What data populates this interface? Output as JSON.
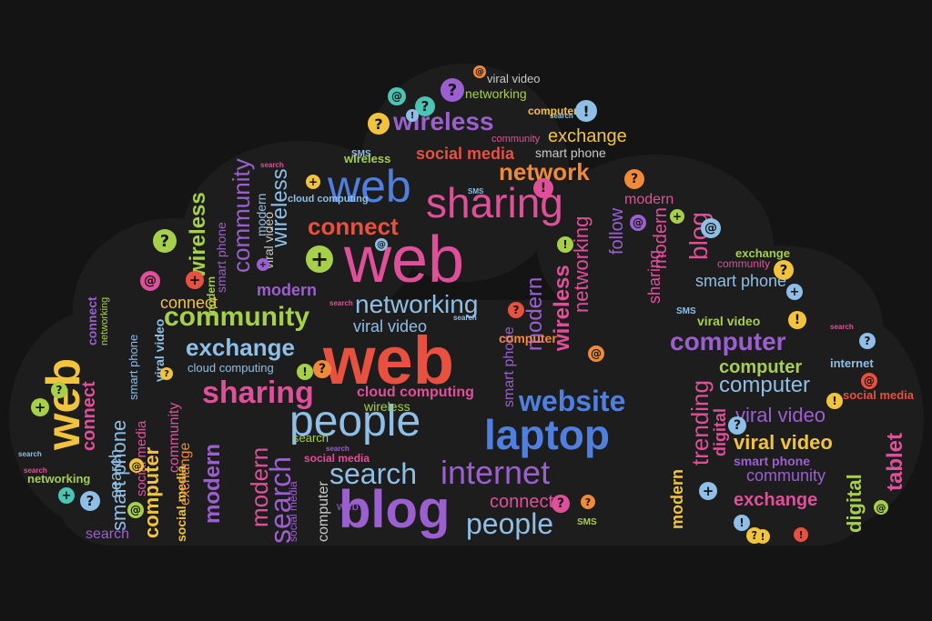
{
  "palette": {
    "background": "#141414",
    "cloud": "#1b1b1b",
    "yellow": "#f2c43d",
    "red": "#e8503f",
    "pink": "#e0509a",
    "purple": "#9b5fcf",
    "blue": "#4f7fe0",
    "lightblue": "#8fbfe6",
    "green": "#a6cf4a",
    "teal": "#4cc4b4",
    "orange": "#ef8a3a",
    "gray": "#c9c9c9"
  },
  "words": [
    {
      "text": "web",
      "color": "red",
      "weight": "bold"
    },
    {
      "text": "web",
      "color": "pink",
      "weight": "normal"
    },
    {
      "text": "web",
      "color": "blue",
      "weight": "normal"
    },
    {
      "text": "web",
      "color": "yellow",
      "weight": "bold"
    },
    {
      "text": "blog",
      "color": "purple",
      "weight": "bold"
    },
    {
      "text": "laptop",
      "color": "blue",
      "weight": "bold"
    },
    {
      "text": "people",
      "color": "lightblue",
      "weight": "normal"
    },
    {
      "text": "people",
      "color": "lightblue",
      "weight": "normal"
    },
    {
      "text": "sharing",
      "color": "pink",
      "weight": "normal"
    },
    {
      "text": "sharing",
      "color": "pink",
      "weight": "bold"
    },
    {
      "text": "internet",
      "color": "purple",
      "weight": "normal"
    },
    {
      "text": "website",
      "color": "blue",
      "weight": "bold"
    },
    {
      "text": "community",
      "color": "green",
      "weight": "bold"
    },
    {
      "text": "community",
      "color": "purple",
      "weight": "normal"
    },
    {
      "text": "computer",
      "color": "purple",
      "weight": "bold"
    },
    {
      "text": "computer",
      "color": "green",
      "weight": "bold"
    },
    {
      "text": "computer",
      "color": "lightblue",
      "weight": "normal"
    },
    {
      "text": "exchange",
      "color": "lightblue",
      "weight": "bold"
    },
    {
      "text": "exchange",
      "color": "pink",
      "weight": "bold"
    },
    {
      "text": "exchange",
      "color": "yellow",
      "weight": "normal"
    },
    {
      "text": "networking",
      "color": "lightblue",
      "weight": "normal"
    },
    {
      "text": "networking",
      "color": "green",
      "weight": "normal"
    },
    {
      "text": "network",
      "color": "orange",
      "weight": "bold"
    },
    {
      "text": "wireless",
      "color": "purple",
      "weight": "bold"
    },
    {
      "text": "wireless",
      "color": "green",
      "weight": "bold"
    },
    {
      "text": "connect",
      "color": "red",
      "weight": "bold"
    },
    {
      "text": "connect",
      "color": "pink",
      "weight": "normal"
    },
    {
      "text": "search",
      "color": "lightblue",
      "weight": "normal"
    },
    {
      "text": "viral video",
      "color": "yellow",
      "weight": "bold"
    },
    {
      "text": "viral video",
      "color": "purple",
      "weight": "normal"
    },
    {
      "text": "viral video",
      "color": "lightblue",
      "weight": "normal"
    },
    {
      "text": "viral video",
      "color": "gray",
      "weight": "normal"
    },
    {
      "text": "viral video",
      "color": "green",
      "weight": "bold"
    },
    {
      "text": "social media",
      "color": "red",
      "weight": "bold"
    },
    {
      "text": "social media",
      "color": "red",
      "weight": "bold"
    },
    {
      "text": "smart phone",
      "color": "gray",
      "weight": "normal"
    },
    {
      "text": "smart phone",
      "color": "purple",
      "weight": "bold"
    },
    {
      "text": "smart phone",
      "color": "lightblue",
      "weight": "normal"
    },
    {
      "text": "modern",
      "color": "purple",
      "weight": "bold"
    },
    {
      "text": "modern",
      "color": "pink",
      "weight": "normal"
    },
    {
      "text": "cloud computing",
      "color": "pink",
      "weight": "bold"
    },
    {
      "text": "cloud computing",
      "color": "lightblue",
      "weight": "normal"
    },
    {
      "text": "trending",
      "color": "pink",
      "weight": "normal"
    },
    {
      "text": "digital",
      "color": "green",
      "weight": "bold"
    },
    {
      "text": "tablet",
      "color": "pink",
      "weight": "bold"
    },
    {
      "text": "follow",
      "color": "purple",
      "weight": "normal"
    },
    {
      "text": "internet",
      "color": "lightblue",
      "weight": "bold"
    },
    {
      "text": "wireless",
      "color": "green",
      "weight": "normal"
    },
    {
      "text": "community",
      "color": "pink",
      "weight": "normal"
    },
    {
      "text": "smart phone",
      "color": "lightblue",
      "weight": "normal"
    },
    {
      "text": "social media",
      "color": "pink",
      "weight": "normal"
    },
    {
      "text": "modern",
      "color": "purple",
      "weight": "bold"
    },
    {
      "text": "modern",
      "color": "pink",
      "weight": "normal"
    },
    {
      "text": "wireless",
      "color": "pink",
      "weight": "bold"
    },
    {
      "text": "wireless",
      "color": "lightblue",
      "weight": "normal"
    },
    {
      "text": "search",
      "color": "purple",
      "weight": "normal"
    },
    {
      "text": "connect",
      "color": "pink",
      "weight": "bold"
    },
    {
      "text": "computer",
      "color": "yellow",
      "weight": "bold"
    },
    {
      "text": "networking",
      "color": "pink",
      "weight": "normal"
    },
    {
      "text": "modern",
      "color": "purple",
      "weight": "normal"
    },
    {
      "text": "modern",
      "color": "yellow",
      "weight": "bold"
    },
    {
      "text": "digital",
      "color": "pink",
      "weight": "bold"
    },
    {
      "text": "search",
      "color": "purple",
      "weight": "normal"
    },
    {
      "text": "modern",
      "color": "pink",
      "weight": "normal"
    },
    {
      "text": "sharing",
      "color": "pink",
      "weight": "normal"
    },
    {
      "text": "social media",
      "color": "yellow",
      "weight": "bold"
    },
    {
      "text": "blog",
      "color": "pink",
      "weight": "normal"
    },
    {
      "text": "web",
      "color": "purple",
      "weight": "normal"
    },
    {
      "text": "smart phone",
      "color": "purple",
      "weight": "normal"
    },
    {
      "text": "community",
      "color": "purple",
      "weight": "normal"
    },
    {
      "text": "exchange",
      "color": "green",
      "weight": "bold"
    },
    {
      "text": "search",
      "color": "green",
      "weight": "normal"
    },
    {
      "text": "viral video",
      "color": "gray",
      "weight": "normal"
    },
    {
      "text": "computer",
      "color": "gray",
      "weight": "normal"
    },
    {
      "text": "social media",
      "color": "purple",
      "weight": "normal"
    },
    {
      "text": "networking",
      "color": "green",
      "weight": "bold"
    },
    {
      "text": "connect",
      "color": "purple",
      "weight": "bold"
    },
    {
      "text": "computer",
      "color": "orange",
      "weight": "bold"
    },
    {
      "text": "networking",
      "color": "green",
      "weight": "normal"
    },
    {
      "text": "smart phone",
      "color": "purple",
      "weight": "normal"
    },
    {
      "text": "community",
      "color": "pink",
      "weight": "normal"
    },
    {
      "text": "exchange",
      "color": "orange",
      "weight": "normal"
    },
    {
      "text": "viral video",
      "color": "lightblue",
      "weight": "bold"
    },
    {
      "text": "social media",
      "color": "pink",
      "weight": "bold"
    },
    {
      "text": "community",
      "color": "pink",
      "weight": "normal"
    },
    {
      "text": "smart phone",
      "color": "lightblue",
      "weight": "normal"
    },
    {
      "text": "cloud computing",
      "color": "lightblue",
      "weight": "bold"
    },
    {
      "text": "modern",
      "color": "lightblue",
      "weight": "normal"
    },
    {
      "text": "search",
      "color": "lightblue",
      "weight": "normal"
    },
    {
      "text": "SMS",
      "color": "lightblue",
      "weight": "bold"
    },
    {
      "text": "SMS",
      "color": "lightblue",
      "weight": "bold"
    },
    {
      "text": "SMS",
      "color": "green",
      "weight": "bold"
    },
    {
      "text": "search",
      "color": "pink",
      "weight": "bold"
    },
    {
      "text": "search",
      "color": "lightblue",
      "weight": "bold"
    },
    {
      "text": "search",
      "color": "pink",
      "weight": "bold"
    },
    {
      "text": "search",
      "color": "lightblue",
      "weight": "bold"
    },
    {
      "text": "connect",
      "color": "yellow",
      "weight": "normal"
    },
    {
      "text": "wireless",
      "color": "green",
      "weight": "bold"
    },
    {
      "text": "search",
      "color": "pink",
      "weight": "bold"
    },
    {
      "text": "search",
      "color": "lightblue",
      "weight": "bold"
    },
    {
      "text": "search",
      "color": "pink",
      "weight": "bold"
    },
    {
      "text": "search",
      "color": "purple",
      "weight": "bold"
    },
    {
      "text": "modern",
      "color": "green",
      "weight": "bold"
    },
    {
      "text": "SMS",
      "color": "lightblue",
      "weight": "bold"
    },
    {
      "text": "computer",
      "color": "yellow",
      "weight": "bold"
    }
  ],
  "icons": [
    {
      "glyph": "?",
      "color": "teal"
    },
    {
      "glyph": "?",
      "color": "purple"
    },
    {
      "glyph": "@",
      "color": "teal"
    },
    {
      "glyph": "?",
      "color": "yellow"
    },
    {
      "glyph": "!",
      "color": "lightblue"
    },
    {
      "glyph": "@",
      "color": "orange"
    },
    {
      "glyph": "!",
      "color": "pink"
    },
    {
      "glyph": "?",
      "color": "orange"
    },
    {
      "glyph": "+",
      "color": "green"
    },
    {
      "glyph": "?",
      "color": "green"
    },
    {
      "glyph": "@",
      "color": "pink"
    },
    {
      "glyph": "+",
      "color": "red"
    },
    {
      "glyph": "?",
      "color": "yellow"
    },
    {
      "glyph": "@",
      "color": "lightblue"
    },
    {
      "glyph": "!",
      "color": "yellow"
    },
    {
      "glyph": "?",
      "color": "orange"
    },
    {
      "glyph": "+",
      "color": "green"
    },
    {
      "glyph": "@",
      "color": "green"
    },
    {
      "glyph": "?",
      "color": "green"
    },
    {
      "glyph": "?",
      "color": "pink"
    },
    {
      "glyph": "!",
      "color": "green"
    },
    {
      "glyph": "@",
      "color": "orange"
    },
    {
      "glyph": "+",
      "color": "lightblue"
    },
    {
      "glyph": "?",
      "color": "lightblue"
    },
    {
      "glyph": "!",
      "color": "lightblue"
    },
    {
      "glyph": "?",
      "color": "yellow"
    },
    {
      "glyph": "@",
      "color": "purple"
    },
    {
      "glyph": "!",
      "color": "yellow"
    },
    {
      "glyph": "+",
      "color": "teal"
    },
    {
      "glyph": "?",
      "color": "red"
    },
    {
      "glyph": "!",
      "color": "green"
    },
    {
      "glyph": "@",
      "color": "red"
    },
    {
      "glyph": "+",
      "color": "lightblue"
    },
    {
      "glyph": "?",
      "color": "lightblue"
    },
    {
      "glyph": "@",
      "color": "yellow"
    },
    {
      "glyph": "!",
      "color": "yellow"
    },
    {
      "glyph": "?",
      "color": "orange"
    },
    {
      "glyph": "+",
      "color": "purple"
    },
    {
      "glyph": "?",
      "color": "lightblue"
    },
    {
      "glyph": "@",
      "color": "green"
    },
    {
      "glyph": "!",
      "color": "red"
    },
    {
      "glyph": "+",
      "color": "yellow"
    },
    {
      "glyph": "?",
      "color": "yellow"
    },
    {
      "glyph": "@",
      "color": "lightblue"
    },
    {
      "glyph": "!",
      "color": "lightblue"
    },
    {
      "glyph": "+",
      "color": "green"
    }
  ]
}
